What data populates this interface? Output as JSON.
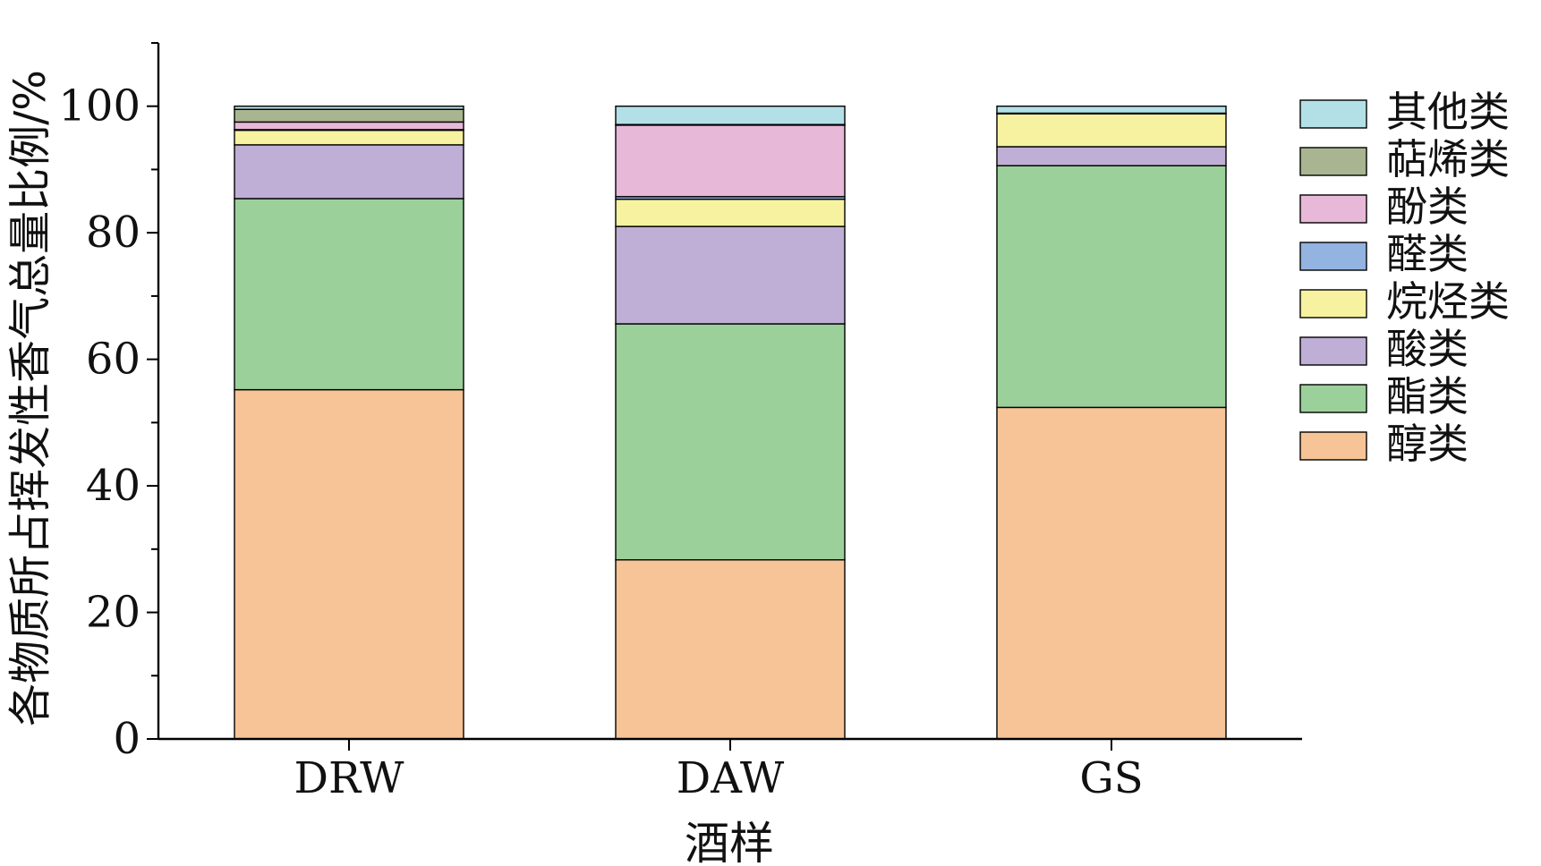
{
  "chart_data": {
    "type": "bar",
    "stacked": true,
    "categories": [
      "DRW",
      "DAW",
      "GS"
    ],
    "xlabel": "酒样",
    "ylabel": "各物质所占挥发性香气总量比例/%",
    "ylim": [
      0,
      110
    ],
    "yticks": [
      0,
      20,
      40,
      60,
      80,
      100
    ],
    "grid": false,
    "legend_position": "right",
    "series": [
      {
        "name": "醇类",
        "color": "#f6c496",
        "values": [
          55.2,
          28.3,
          52.4
        ]
      },
      {
        "name": "酯类",
        "color": "#9bd09a",
        "values": [
          30.2,
          37.3,
          38.2
        ]
      },
      {
        "name": "酸类",
        "color": "#bfaed5",
        "values": [
          8.5,
          15.4,
          3.0
        ]
      },
      {
        "name": "烷烃类",
        "color": "#f6f2a0",
        "values": [
          2.3,
          4.3,
          5.2
        ]
      },
      {
        "name": "醛类",
        "color": "#93b3e0",
        "values": [
          0.1,
          0.4,
          0.1
        ]
      },
      {
        "name": "酚类",
        "color": "#e7b8d8",
        "values": [
          1.2,
          11.3,
          0.0
        ]
      },
      {
        "name": "萜烯类",
        "color": "#a9b590",
        "values": [
          2.0,
          0.1,
          0.0
        ]
      },
      {
        "name": "其他类",
        "color": "#b3e0e6",
        "values": [
          0.5,
          2.9,
          1.1
        ]
      }
    ]
  }
}
